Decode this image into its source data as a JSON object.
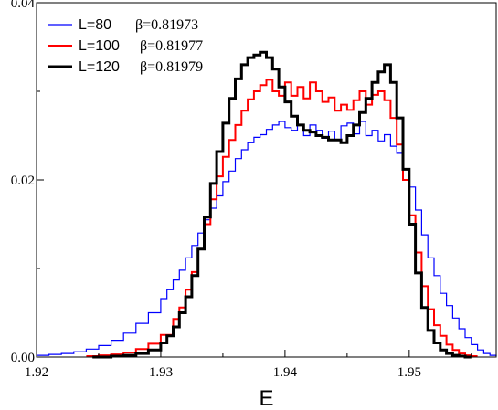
{
  "chart_data": {
    "type": "line",
    "style": "step-histogram",
    "xlabel": "E",
    "ylabel": "",
    "xlim": [
      1.92,
      1.957
    ],
    "ylim": [
      0.0,
      0.04
    ],
    "x_ticks": [
      1.92,
      1.93,
      1.94,
      1.95
    ],
    "x_tick_labels": [
      "1.92",
      "1.93",
      "1.94",
      "1.95"
    ],
    "y_ticks": [
      0.0,
      0.02,
      0.04
    ],
    "y_tick_labels": [
      "0.00",
      "0.02",
      "0.04"
    ],
    "legend_position": "top-left",
    "grid": false,
    "series": [
      {
        "name": "L=80",
        "beta": "β=0.81973",
        "color": "#0000ff",
        "line_width": 1.2,
        "points": [
          [
            1.92,
            0.0002
          ],
          [
            1.921,
            0.0003
          ],
          [
            1.922,
            0.0004
          ],
          [
            1.923,
            0.0006
          ],
          [
            1.924,
            0.0009
          ],
          [
            1.925,
            0.0013
          ],
          [
            1.926,
            0.0019
          ],
          [
            1.927,
            0.0027
          ],
          [
            1.928,
            0.0038
          ],
          [
            1.929,
            0.005
          ],
          [
            1.93,
            0.0066
          ],
          [
            1.9305,
            0.0076
          ],
          [
            1.931,
            0.0087
          ],
          [
            1.9315,
            0.0098
          ],
          [
            1.932,
            0.0112
          ],
          [
            1.9325,
            0.0126
          ],
          [
            1.933,
            0.014
          ],
          [
            1.9335,
            0.0155
          ],
          [
            1.934,
            0.0168
          ],
          [
            1.9345,
            0.0182
          ],
          [
            1.935,
            0.0198
          ],
          [
            1.9355,
            0.021
          ],
          [
            1.936,
            0.0224
          ],
          [
            1.9365,
            0.0234
          ],
          [
            1.937,
            0.0242
          ],
          [
            1.9375,
            0.0248
          ],
          [
            1.938,
            0.0251
          ],
          [
            1.9385,
            0.0257
          ],
          [
            1.939,
            0.0262
          ],
          [
            1.9395,
            0.0266
          ],
          [
            1.94,
            0.0259
          ],
          [
            1.9405,
            0.0256
          ],
          [
            1.941,
            0.0262
          ],
          [
            1.9415,
            0.025
          ],
          [
            1.942,
            0.0262
          ],
          [
            1.9425,
            0.0256
          ],
          [
            1.943,
            0.0247
          ],
          [
            1.9435,
            0.0255
          ],
          [
            1.944,
            0.0245
          ],
          [
            1.9445,
            0.0261
          ],
          [
            1.945,
            0.0264
          ],
          [
            1.9455,
            0.0252
          ],
          [
            1.946,
            0.0266
          ],
          [
            1.9465,
            0.025
          ],
          [
            1.947,
            0.0256
          ],
          [
            1.9475,
            0.0244
          ],
          [
            1.948,
            0.0251
          ],
          [
            1.9485,
            0.0238
          ],
          [
            1.949,
            0.023
          ],
          [
            1.9495,
            0.0212
          ],
          [
            1.95,
            0.0192
          ],
          [
            1.9505,
            0.0166
          ],
          [
            1.951,
            0.0138
          ],
          [
            1.9515,
            0.0112
          ],
          [
            1.952,
            0.0092
          ],
          [
            1.9525,
            0.0072
          ],
          [
            1.953,
            0.0058
          ],
          [
            1.9535,
            0.0044
          ],
          [
            1.954,
            0.0032
          ],
          [
            1.9545,
            0.0022
          ],
          [
            1.955,
            0.0014
          ],
          [
            1.9555,
            0.0008
          ],
          [
            1.956,
            0.0004
          ],
          [
            1.9565,
            0.0002
          ],
          [
            1.957,
            0.0001
          ]
        ]
      },
      {
        "name": "L=100",
        "beta": "β=0.81977",
        "color": "#ff0000",
        "line_width": 2,
        "points": [
          [
            1.924,
            0.0001
          ],
          [
            1.925,
            0.0002
          ],
          [
            1.926,
            0.0003
          ],
          [
            1.927,
            0.0005
          ],
          [
            1.928,
            0.0009
          ],
          [
            1.929,
            0.0015
          ],
          [
            1.93,
            0.0025
          ],
          [
            1.931,
            0.0043
          ],
          [
            1.9315,
            0.0056
          ],
          [
            1.932,
            0.0076
          ],
          [
            1.9325,
            0.0096
          ],
          [
            1.933,
            0.0122
          ],
          [
            1.9335,
            0.015
          ],
          [
            1.934,
            0.0178
          ],
          [
            1.9345,
            0.0204
          ],
          [
            1.935,
            0.0226
          ],
          [
            1.9355,
            0.0245
          ],
          [
            1.936,
            0.0262
          ],
          [
            1.9365,
            0.0278
          ],
          [
            1.937,
            0.0291
          ],
          [
            1.9375,
            0.03
          ],
          [
            1.938,
            0.0307
          ],
          [
            1.9385,
            0.0313
          ],
          [
            1.939,
            0.03
          ],
          [
            1.9395,
            0.0295
          ],
          [
            1.94,
            0.031
          ],
          [
            1.9405,
            0.0295
          ],
          [
            1.941,
            0.0305
          ],
          [
            1.9415,
            0.0292
          ],
          [
            1.942,
            0.031
          ],
          [
            1.9425,
            0.03
          ],
          [
            1.943,
            0.0288
          ],
          [
            1.9435,
            0.0293
          ],
          [
            1.944,
            0.0278
          ],
          [
            1.9445,
            0.0285
          ],
          [
            1.945,
            0.0279
          ],
          [
            1.9455,
            0.029
          ],
          [
            1.946,
            0.03
          ],
          [
            1.9465,
            0.0285
          ],
          [
            1.947,
            0.0296
          ],
          [
            1.9475,
            0.03
          ],
          [
            1.948,
            0.029
          ],
          [
            1.9485,
            0.027
          ],
          [
            1.949,
            0.024
          ],
          [
            1.9495,
            0.02
          ],
          [
            1.95,
            0.016
          ],
          [
            1.9505,
            0.0118
          ],
          [
            1.951,
            0.008
          ],
          [
            1.9515,
            0.0054
          ],
          [
            1.952,
            0.0036
          ],
          [
            1.9525,
            0.0024
          ],
          [
            1.953,
            0.0014
          ],
          [
            1.9535,
            0.0008
          ],
          [
            1.954,
            0.0004
          ],
          [
            1.9545,
            0.0002
          ],
          [
            1.955,
            0.0001
          ]
        ]
      },
      {
        "name": "L=120",
        "beta": "β=0.81979",
        "color": "#000000",
        "line_width": 3,
        "points": [
          [
            1.9245,
            0.0
          ],
          [
            1.926,
            0.0001
          ],
          [
            1.927,
            0.0002
          ],
          [
            1.928,
            0.0004
          ],
          [
            1.929,
            0.0008
          ],
          [
            1.93,
            0.0016
          ],
          [
            1.9305,
            0.0024
          ],
          [
            1.931,
            0.0034
          ],
          [
            1.9315,
            0.005
          ],
          [
            1.932,
            0.0068
          ],
          [
            1.9325,
            0.0092
          ],
          [
            1.933,
            0.0122
          ],
          [
            1.9335,
            0.0158
          ],
          [
            1.934,
            0.0196
          ],
          [
            1.9345,
            0.0232
          ],
          [
            1.935,
            0.0264
          ],
          [
            1.9355,
            0.0292
          ],
          [
            1.936,
            0.0314
          ],
          [
            1.9365,
            0.033
          ],
          [
            1.937,
            0.0338
          ],
          [
            1.9375,
            0.0341
          ],
          [
            1.938,
            0.0344
          ],
          [
            1.9385,
            0.0338
          ],
          [
            1.939,
            0.0325
          ],
          [
            1.9395,
            0.0305
          ],
          [
            1.94,
            0.0288
          ],
          [
            1.9405,
            0.0272
          ],
          [
            1.941,
            0.0262
          ],
          [
            1.9415,
            0.0256
          ],
          [
            1.942,
            0.0254
          ],
          [
            1.9425,
            0.025
          ],
          [
            1.943,
            0.0248
          ],
          [
            1.9435,
            0.0245
          ],
          [
            1.944,
            0.0245
          ],
          [
            1.9445,
            0.0242
          ],
          [
            1.945,
            0.025
          ],
          [
            1.9455,
            0.0262
          ],
          [
            1.946,
            0.0276
          ],
          [
            1.9465,
            0.0292
          ],
          [
            1.947,
            0.031
          ],
          [
            1.9475,
            0.0322
          ],
          [
            1.948,
            0.033
          ],
          [
            1.9485,
            0.031
          ],
          [
            1.949,
            0.027
          ],
          [
            1.9495,
            0.0212
          ],
          [
            1.95,
            0.015
          ],
          [
            1.9505,
            0.0095
          ],
          [
            1.951,
            0.0056
          ],
          [
            1.9515,
            0.003
          ],
          [
            1.952,
            0.0016
          ],
          [
            1.9525,
            0.0008
          ],
          [
            1.953,
            0.0004
          ],
          [
            1.9535,
            0.0002
          ],
          [
            1.954,
            0.0001
          ],
          [
            1.9545,
            0.0
          ]
        ]
      }
    ]
  }
}
